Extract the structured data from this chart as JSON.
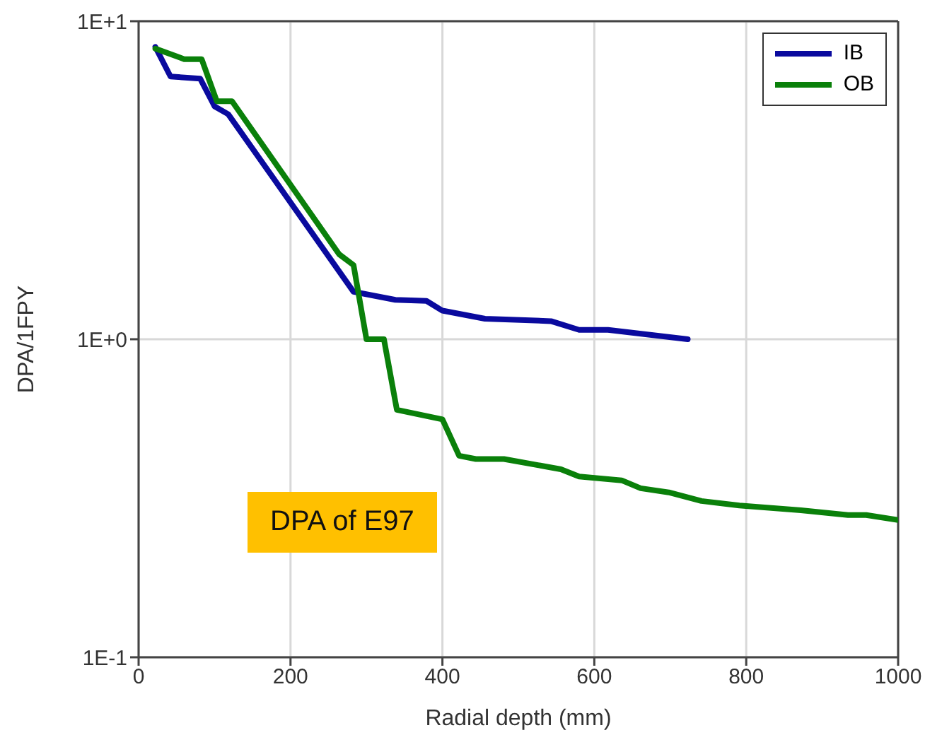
{
  "chart_data": {
    "type": "line",
    "xlabel": "Radial depth (mm)",
    "ylabel": "DPA/1FPY",
    "log": "y",
    "xlim": [
      0,
      1000
    ],
    "xticks": [
      0,
      200,
      400,
      600,
      800,
      1000
    ],
    "ylim": [
      0.1,
      10
    ],
    "yticks": [
      {
        "value": 0.1,
        "label": "1E-1"
      },
      {
        "value": 1,
        "label": "1E+0"
      },
      {
        "value": 10,
        "label": "1E+1"
      }
    ],
    "grid": true,
    "legend": "top right",
    "marker": "none",
    "line_style": "solid",
    "annotations": [
      "DPA of E97"
    ],
    "series": [
      {
        "name": "IB",
        "color": "#0a0a9e",
        "x": [
          22,
          42,
          81,
          100,
          118,
          283,
          338,
          379,
          400,
          456,
          543,
          580,
          618,
          723
        ],
        "values": [
          8.3,
          6.7,
          6.6,
          5.4,
          5.1,
          1.41,
          1.33,
          1.32,
          1.23,
          1.16,
          1.14,
          1.07,
          1.07,
          1.0
        ]
      },
      {
        "name": "OB",
        "color": "#0a800a",
        "x": [
          22,
          60,
          83,
          103,
          123,
          264,
          283,
          300,
          323,
          340,
          400,
          422,
          444,
          481,
          556,
          580,
          636,
          661,
          698,
          741,
          791,
          872,
          934,
          958,
          1000
        ],
        "values": [
          8.2,
          7.6,
          7.6,
          5.6,
          5.6,
          1.85,
          1.71,
          1.0,
          1.0,
          0.6,
          0.56,
          0.43,
          0.42,
          0.42,
          0.39,
          0.37,
          0.36,
          0.34,
          0.33,
          0.31,
          0.3,
          0.29,
          0.28,
          0.28,
          0.27
        ]
      }
    ]
  }
}
